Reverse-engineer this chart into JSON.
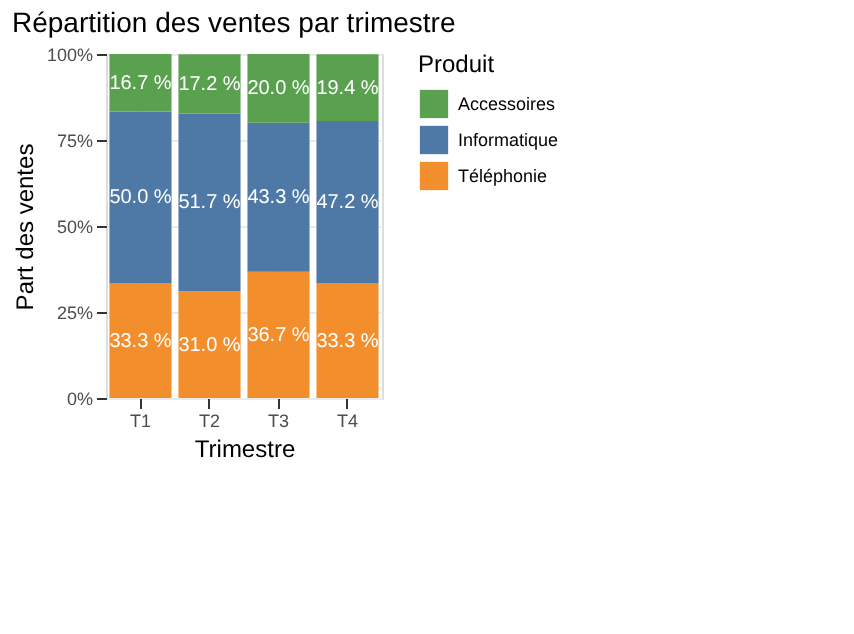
{
  "chart_data": {
    "type": "bar",
    "title": "Répartition des ventes par trimestre",
    "xlabel": "Trimestre",
    "ylabel": "Part des ventes",
    "legend_title": "Produit",
    "categories": [
      "T1",
      "T2",
      "T3",
      "T4"
    ],
    "stacked": true,
    "series": [
      {
        "name": "Téléphonie",
        "color": "#f28e2b",
        "values": [
          33.3,
          31.0,
          36.7,
          33.3
        ],
        "value_labels": [
          "33.3 %",
          "31.0 %",
          "36.7 %",
          "33.3 %"
        ]
      },
      {
        "name": "Informatique",
        "color": "#4e79a7",
        "values": [
          50.0,
          51.7,
          43.3,
          47.2
        ],
        "value_labels": [
          "50.0 %",
          "51.7 %",
          "43.3 %",
          "47.2 %"
        ]
      },
      {
        "name": "Accessoires",
        "color": "#59a14f",
        "values": [
          16.7,
          17.2,
          20.0,
          19.4
        ],
        "value_labels": [
          "16.7 %",
          "17.2 %",
          "20.0 %",
          "19.4 %"
        ]
      }
    ],
    "ylim": [
      0,
      100
    ],
    "yticks": [
      {
        "value": 0,
        "label": "0%"
      },
      {
        "value": 25,
        "label": "25%"
      },
      {
        "value": 50,
        "label": "50%"
      },
      {
        "value": 75,
        "label": "75%"
      },
      {
        "value": 100,
        "label": "100%"
      }
    ],
    "grid": true,
    "legend": "right"
  }
}
